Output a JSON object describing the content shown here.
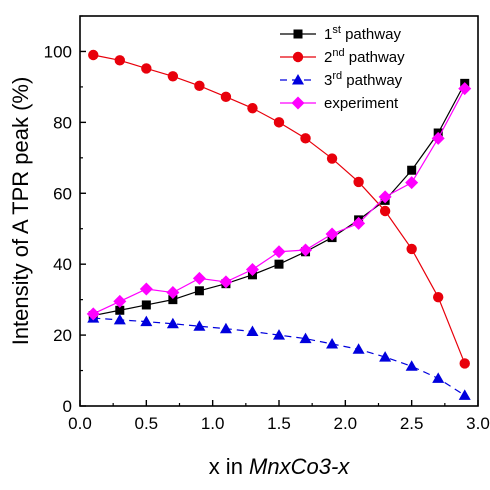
{
  "chart_data": {
    "type": "line",
    "title": "",
    "xlabel_prefix": "x in ",
    "xlabel_italic": "MnxCo3-x",
    "ylabel": "Intensity of A TPR peak (%)",
    "xlim": [
      0.0,
      3.0
    ],
    "ylim": [
      0,
      110
    ],
    "xticks": [
      "0.0",
      "0.5",
      "1.0",
      "1.5",
      "2.0",
      "2.5",
      "3.0"
    ],
    "yticks": [
      "0",
      "20",
      "40",
      "60",
      "80",
      "100"
    ],
    "grid": false,
    "legend_position": "top-right",
    "x": [
      0.1,
      0.3,
      0.5,
      0.7,
      0.9,
      1.1,
      1.3,
      1.5,
      1.7,
      1.9,
      2.1,
      2.3,
      2.5,
      2.7,
      2.9
    ],
    "series": [
      {
        "name": "1st pathway",
        "name_base": "1",
        "name_sup": "st",
        "name_rest": " pathway",
        "color": "#000000",
        "marker": "square",
        "values": [
          25.5,
          27,
          28.5,
          30,
          32.5,
          34.5,
          37,
          40,
          43.5,
          47.5,
          52.5,
          58,
          66.5,
          77,
          91
        ]
      },
      {
        "name": "2nd pathway",
        "name_base": "2",
        "name_sup": "nd",
        "name_rest": " pathway",
        "color": "#e8000b",
        "marker": "circle",
        "values": [
          99,
          97.5,
          95.2,
          93,
          90.3,
          87.2,
          84,
          80,
          75.5,
          69.8,
          63.2,
          55,
          44.3,
          30.7,
          12
        ]
      },
      {
        "name": "3rd pathway",
        "name_base": "3",
        "name_sup": "rd",
        "name_rest": " pathway",
        "color": "#0000dd",
        "marker": "triangle",
        "values": [
          24.8,
          24.3,
          23.8,
          23.2,
          22.5,
          21.8,
          21,
          20,
          19,
          17.5,
          16,
          13.8,
          11.2,
          7.8,
          3
        ]
      },
      {
        "name": "experiment",
        "name_base": "experiment",
        "name_sup": "",
        "name_rest": "",
        "color": "#ff00ff",
        "marker": "diamond",
        "values": [
          26,
          29.5,
          33,
          32,
          36,
          35,
          38.5,
          43.5,
          44,
          48.5,
          51.5,
          59,
          63,
          75.5,
          89.5
        ]
      }
    ]
  }
}
